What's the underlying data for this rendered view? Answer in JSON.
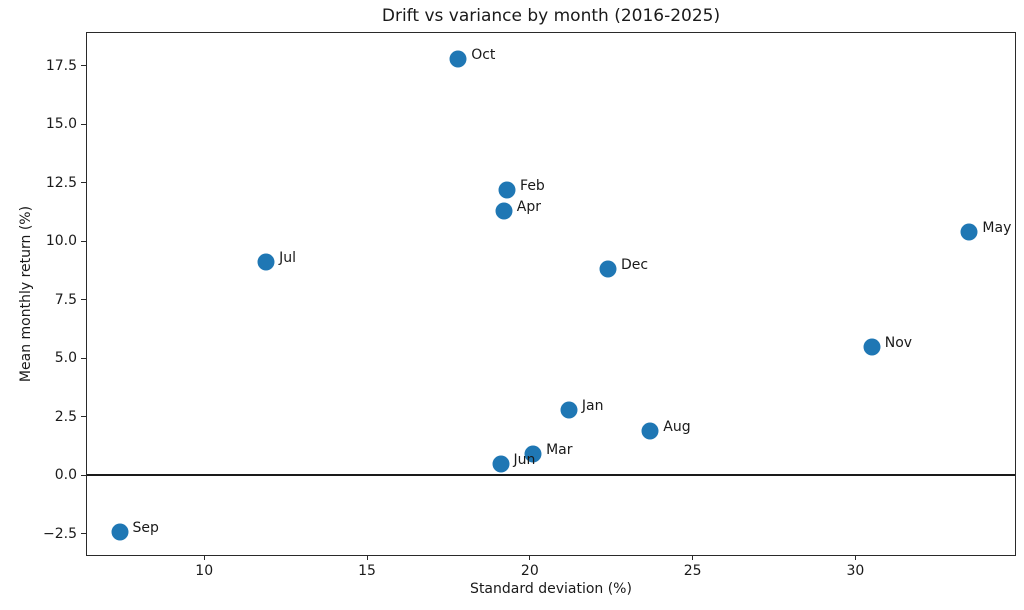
{
  "chart_data": {
    "type": "scatter",
    "title": "Drift vs variance by month (2016-2025)",
    "xlabel": "Standard deviation (%)",
    "ylabel": "Mean monthly return (%)",
    "xlim": [
      6.4,
      34.9
    ],
    "ylim": [
      -3.4,
      18.9
    ],
    "x_ticks": [
      10,
      15,
      20,
      25,
      30
    ],
    "x_tick_labels": [
      "10",
      "15",
      "20",
      "25",
      "30"
    ],
    "y_ticks": [
      -2.5,
      0.0,
      2.5,
      5.0,
      7.5,
      10.0,
      12.5,
      15.0,
      17.5
    ],
    "y_tick_labels": [
      "−2.5",
      "0.0",
      "2.5",
      "5.0",
      "7.5",
      "10.0",
      "12.5",
      "15.0",
      "17.5"
    ],
    "grid": false,
    "legend_position": "none",
    "marker_color": "#1f77b4",
    "zero_line_y": 0,
    "points": [
      {
        "label": "Jan",
        "x": 21.2,
        "y": 2.8
      },
      {
        "label": "Feb",
        "x": 19.3,
        "y": 12.2
      },
      {
        "label": "Mar",
        "x": 20.1,
        "y": 0.9
      },
      {
        "label": "Apr",
        "x": 19.2,
        "y": 11.3
      },
      {
        "label": "May",
        "x": 33.5,
        "y": 10.4
      },
      {
        "label": "Jun",
        "x": 19.1,
        "y": 0.5
      },
      {
        "label": "Jul",
        "x": 11.9,
        "y": 9.1
      },
      {
        "label": "Aug",
        "x": 23.7,
        "y": 1.9
      },
      {
        "label": "Sep",
        "x": 7.4,
        "y": -2.4
      },
      {
        "label": "Oct",
        "x": 17.8,
        "y": 17.8
      },
      {
        "label": "Nov",
        "x": 30.5,
        "y": 5.5
      },
      {
        "label": "Dec",
        "x": 22.4,
        "y": 8.8
      }
    ]
  }
}
